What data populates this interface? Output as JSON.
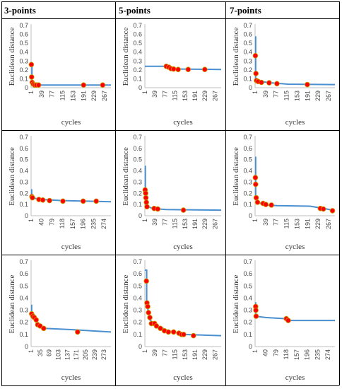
{
  "table": {
    "headers": [
      "3-points",
      "5-points",
      "7-points"
    ]
  },
  "chart_data": [
    {
      "type": "line",
      "row": 1,
      "column": "3-points",
      "ylabel": "Euclidean distance",
      "xlabel": "cycles",
      "ylim": [
        0,
        0.7
      ],
      "yticks": [
        "0",
        "0.1",
        "0.2",
        "0.3",
        "0.4",
        "0.5",
        "0.6",
        "0.7"
      ],
      "xlim": [
        1,
        290
      ],
      "xticks": [
        1,
        39,
        77,
        115,
        153,
        191,
        229,
        267
      ],
      "series_color": "#4a8fd0",
      "marker_color": "#ff0000",
      "line": [
        [
          1,
          0.26
        ],
        [
          4,
          0.25
        ],
        [
          4,
          0.03
        ],
        [
          290,
          0.03
        ]
      ],
      "markers": [
        [
          2,
          0.26
        ],
        [
          3,
          0.12
        ],
        [
          5,
          0.06
        ],
        [
          9,
          0.04
        ],
        [
          14,
          0.03
        ],
        [
          20,
          0.03
        ],
        [
          28,
          0.03
        ],
        [
          191,
          0.03
        ],
        [
          260,
          0.03
        ]
      ]
    },
    {
      "type": "line",
      "row": 1,
      "column": "5-points",
      "ylabel": "Euclidean distance",
      "xlabel": "cycles",
      "ylim": [
        0,
        0.7
      ],
      "yticks": [
        "0",
        "0.1",
        "0.2",
        "0.3",
        "0.4",
        "0.5",
        "0.6",
        "0.7"
      ],
      "xlim": [
        1,
        290
      ],
      "xticks": [
        1,
        39,
        77,
        115,
        153,
        191,
        229,
        267
      ],
      "series_color": "#4a8fd0",
      "marker_color": "#ff0000",
      "line": [
        [
          1,
          0.24
        ],
        [
          80,
          0.24
        ],
        [
          98,
          0.225
        ],
        [
          115,
          0.21
        ],
        [
          290,
          0.205
        ]
      ],
      "markers": [
        [
          82,
          0.24
        ],
        [
          92,
          0.23
        ],
        [
          100,
          0.215
        ],
        [
          110,
          0.21
        ],
        [
          127,
          0.205
        ],
        [
          165,
          0.205
        ],
        [
          228,
          0.205
        ]
      ]
    },
    {
      "type": "line",
      "row": 1,
      "column": "7-points",
      "ylabel": "Euclidean distance",
      "xlabel": "cycles",
      "ylim": [
        0,
        0.7
      ],
      "yticks": [
        "0",
        "0.1",
        "0.2",
        "0.3",
        "0.4",
        "0.5",
        "0.6",
        "0.7"
      ],
      "xlim": [
        1,
        290
      ],
      "xticks": [
        1,
        39,
        77,
        115,
        153,
        191,
        229,
        267
      ],
      "series_color": "#4a8fd0",
      "marker_color": "#ff0000",
      "line": [
        [
          1,
          0.57
        ],
        [
          3,
          0.57
        ],
        [
          3,
          0.08
        ],
        [
          20,
          0.07
        ],
        [
          60,
          0.055
        ],
        [
          120,
          0.04
        ],
        [
          290,
          0.035
        ]
      ],
      "markers": [
        [
          2,
          0.36
        ],
        [
          4,
          0.16
        ],
        [
          6,
          0.08
        ],
        [
          12,
          0.07
        ],
        [
          24,
          0.06
        ],
        [
          52,
          0.055
        ],
        [
          80,
          0.045
        ],
        [
          190,
          0.035
        ]
      ]
    },
    {
      "type": "line",
      "row": 2,
      "column": "3-points",
      "ylabel": "Euclidean distance",
      "xlabel": "cycles",
      "ylim": [
        0,
        0.7
      ],
      "yticks": [
        "0",
        "0.1",
        "0.2",
        "0.3",
        "0.4",
        "0.5",
        "0.6",
        "0.7"
      ],
      "xlim": [
        1,
        300
      ],
      "xticks": [
        1,
        40,
        79,
        118,
        157,
        196,
        235,
        274
      ],
      "series_color": "#4a8fd0",
      "marker_color": "#ff0000",
      "line": [
        [
          1,
          0.23
        ],
        [
          3,
          0.23
        ],
        [
          3,
          0.16
        ],
        [
          40,
          0.145
        ],
        [
          118,
          0.135
        ],
        [
          300,
          0.125
        ]
      ],
      "markers": [
        [
          4,
          0.17
        ],
        [
          6,
          0.16
        ],
        [
          30,
          0.145
        ],
        [
          45,
          0.14
        ],
        [
          70,
          0.135
        ],
        [
          120,
          0.13
        ],
        [
          196,
          0.13
        ],
        [
          245,
          0.13
        ]
      ]
    },
    {
      "type": "line",
      "row": 2,
      "column": "5-points",
      "ylabel": "Euclidean distance",
      "xlabel": "cycles",
      "ylim": [
        0,
        0.7
      ],
      "yticks": [
        "0",
        "0.1",
        "0.2",
        "0.3",
        "0.4",
        "0.5",
        "0.6",
        "0.7"
      ],
      "xlim": [
        1,
        290
      ],
      "xticks": [
        1,
        39,
        77,
        115,
        153,
        191,
        229,
        267
      ],
      "series_color": "#4a8fd0",
      "marker_color": "#ff0000",
      "line": [
        [
          1,
          0.44
        ],
        [
          3,
          0.44
        ],
        [
          3,
          0.09
        ],
        [
          30,
          0.065
        ],
        [
          80,
          0.055
        ],
        [
          290,
          0.05
        ]
      ],
      "markers": [
        [
          2,
          0.23
        ],
        [
          4,
          0.2
        ],
        [
          5,
          0.16
        ],
        [
          7,
          0.12
        ],
        [
          9,
          0.08
        ],
        [
          36,
          0.065
        ],
        [
          50,
          0.06
        ],
        [
          147,
          0.05
        ]
      ]
    },
    {
      "type": "line",
      "row": 2,
      "column": "7-points",
      "ylabel": "Euclidean distance",
      "xlabel": "cycles",
      "ylim": [
        0,
        0.7
      ],
      "yticks": [
        "0",
        "0.1",
        "0.2",
        "0.3",
        "0.4",
        "0.5",
        "0.6",
        "0.7"
      ],
      "xlim": [
        1,
        290
      ],
      "xticks": [
        1,
        39,
        77,
        115,
        153,
        191,
        229,
        267
      ],
      "series_color": "#4a8fd0",
      "marker_color": "#ff0000",
      "line": [
        [
          1,
          0.52
        ],
        [
          3,
          0.52
        ],
        [
          3,
          0.15
        ],
        [
          20,
          0.11
        ],
        [
          40,
          0.095
        ],
        [
          80,
          0.09
        ],
        [
          200,
          0.085
        ],
        [
          260,
          0.06
        ],
        [
          290,
          0.045
        ]
      ],
      "markers": [
        [
          2,
          0.34
        ],
        [
          3,
          0.28
        ],
        [
          5,
          0.16
        ],
        [
          10,
          0.12
        ],
        [
          30,
          0.11
        ],
        [
          40,
          0.1
        ],
        [
          60,
          0.095
        ],
        [
          237,
          0.065
        ],
        [
          248,
          0.06
        ],
        [
          281,
          0.045
        ]
      ]
    },
    {
      "type": "line",
      "row": 3,
      "column": "3-points",
      "ylabel": "Euclidean distance",
      "xlabel": "cycles",
      "ylim": [
        0,
        0.7
      ],
      "yticks": [
        "0",
        "0.1",
        "0.2",
        "0.3",
        "0.4",
        "0.5",
        "0.6",
        "0.7"
      ],
      "xlim": [
        1,
        300
      ],
      "xticks": [
        1,
        35,
        69,
        103,
        137,
        171,
        205,
        239,
        273
      ],
      "series_color": "#4a8fd0",
      "marker_color": "#ff0000",
      "line": [
        [
          1,
          0.34
        ],
        [
          3,
          0.34
        ],
        [
          3,
          0.26
        ],
        [
          20,
          0.2
        ],
        [
          50,
          0.15
        ],
        [
          150,
          0.14
        ],
        [
          300,
          0.12
        ]
      ],
      "markers": [
        [
          3,
          0.27
        ],
        [
          8,
          0.25
        ],
        [
          13,
          0.24
        ],
        [
          20,
          0.22
        ],
        [
          26,
          0.18
        ],
        [
          35,
          0.17
        ],
        [
          48,
          0.15
        ],
        [
          175,
          0.12
        ]
      ]
    },
    {
      "type": "line",
      "row": 3,
      "column": "5-points",
      "ylabel": "Euclidean distance",
      "xlabel": "cycles",
      "ylim": [
        0,
        0.7
      ],
      "yticks": [
        "0",
        "0.1",
        "0.2",
        "0.3",
        "0.4",
        "0.5",
        "0.6",
        "0.7"
      ],
      "xlim": [
        1,
        290
      ],
      "xticks": [
        1,
        39,
        77,
        115,
        153,
        191,
        229,
        267
      ],
      "series_color": "#4a8fd0",
      "marker_color": "#ff0000",
      "line": [
        [
          1,
          0.63
        ],
        [
          8,
          0.63
        ],
        [
          8,
          0.36
        ],
        [
          20,
          0.22
        ],
        [
          40,
          0.18
        ],
        [
          90,
          0.13
        ],
        [
          150,
          0.1
        ],
        [
          290,
          0.09
        ]
      ],
      "markers": [
        [
          7,
          0.54
        ],
        [
          9,
          0.36
        ],
        [
          12,
          0.33
        ],
        [
          15,
          0.28
        ],
        [
          20,
          0.24
        ],
        [
          26,
          0.19
        ],
        [
          38,
          0.19
        ],
        [
          45,
          0.17
        ],
        [
          60,
          0.15
        ],
        [
          75,
          0.13
        ],
        [
          90,
          0.12
        ],
        [
          110,
          0.12
        ],
        [
          130,
          0.11
        ],
        [
          140,
          0.1
        ],
        [
          148,
          0.1
        ],
        [
          185,
          0.09
        ]
      ]
    },
    {
      "type": "line",
      "row": 3,
      "column": "7-points",
      "ylabel": "Euclidean distance",
      "xlabel": "cycles",
      "ylim": [
        0,
        0.7
      ],
      "yticks": [
        "0",
        "0.1",
        "0.2",
        "0.3",
        "0.4",
        "0.5",
        "0.6",
        "0.7"
      ],
      "xlim": [
        1,
        300
      ],
      "xticks": [
        1,
        40,
        79,
        118,
        157,
        196,
        235,
        274
      ],
      "series_color": "#4a8fd0",
      "marker_color": "#ff0000",
      "line": [
        [
          1,
          0.36
        ],
        [
          3,
          0.36
        ],
        [
          3,
          0.25
        ],
        [
          40,
          0.24
        ],
        [
          118,
          0.23
        ],
        [
          125,
          0.215
        ],
        [
          300,
          0.215
        ]
      ],
      "markers": [
        [
          3,
          0.33
        ],
        [
          4,
          0.3
        ],
        [
          5,
          0.25
        ],
        [
          118,
          0.23
        ],
        [
          125,
          0.215
        ]
      ]
    }
  ]
}
